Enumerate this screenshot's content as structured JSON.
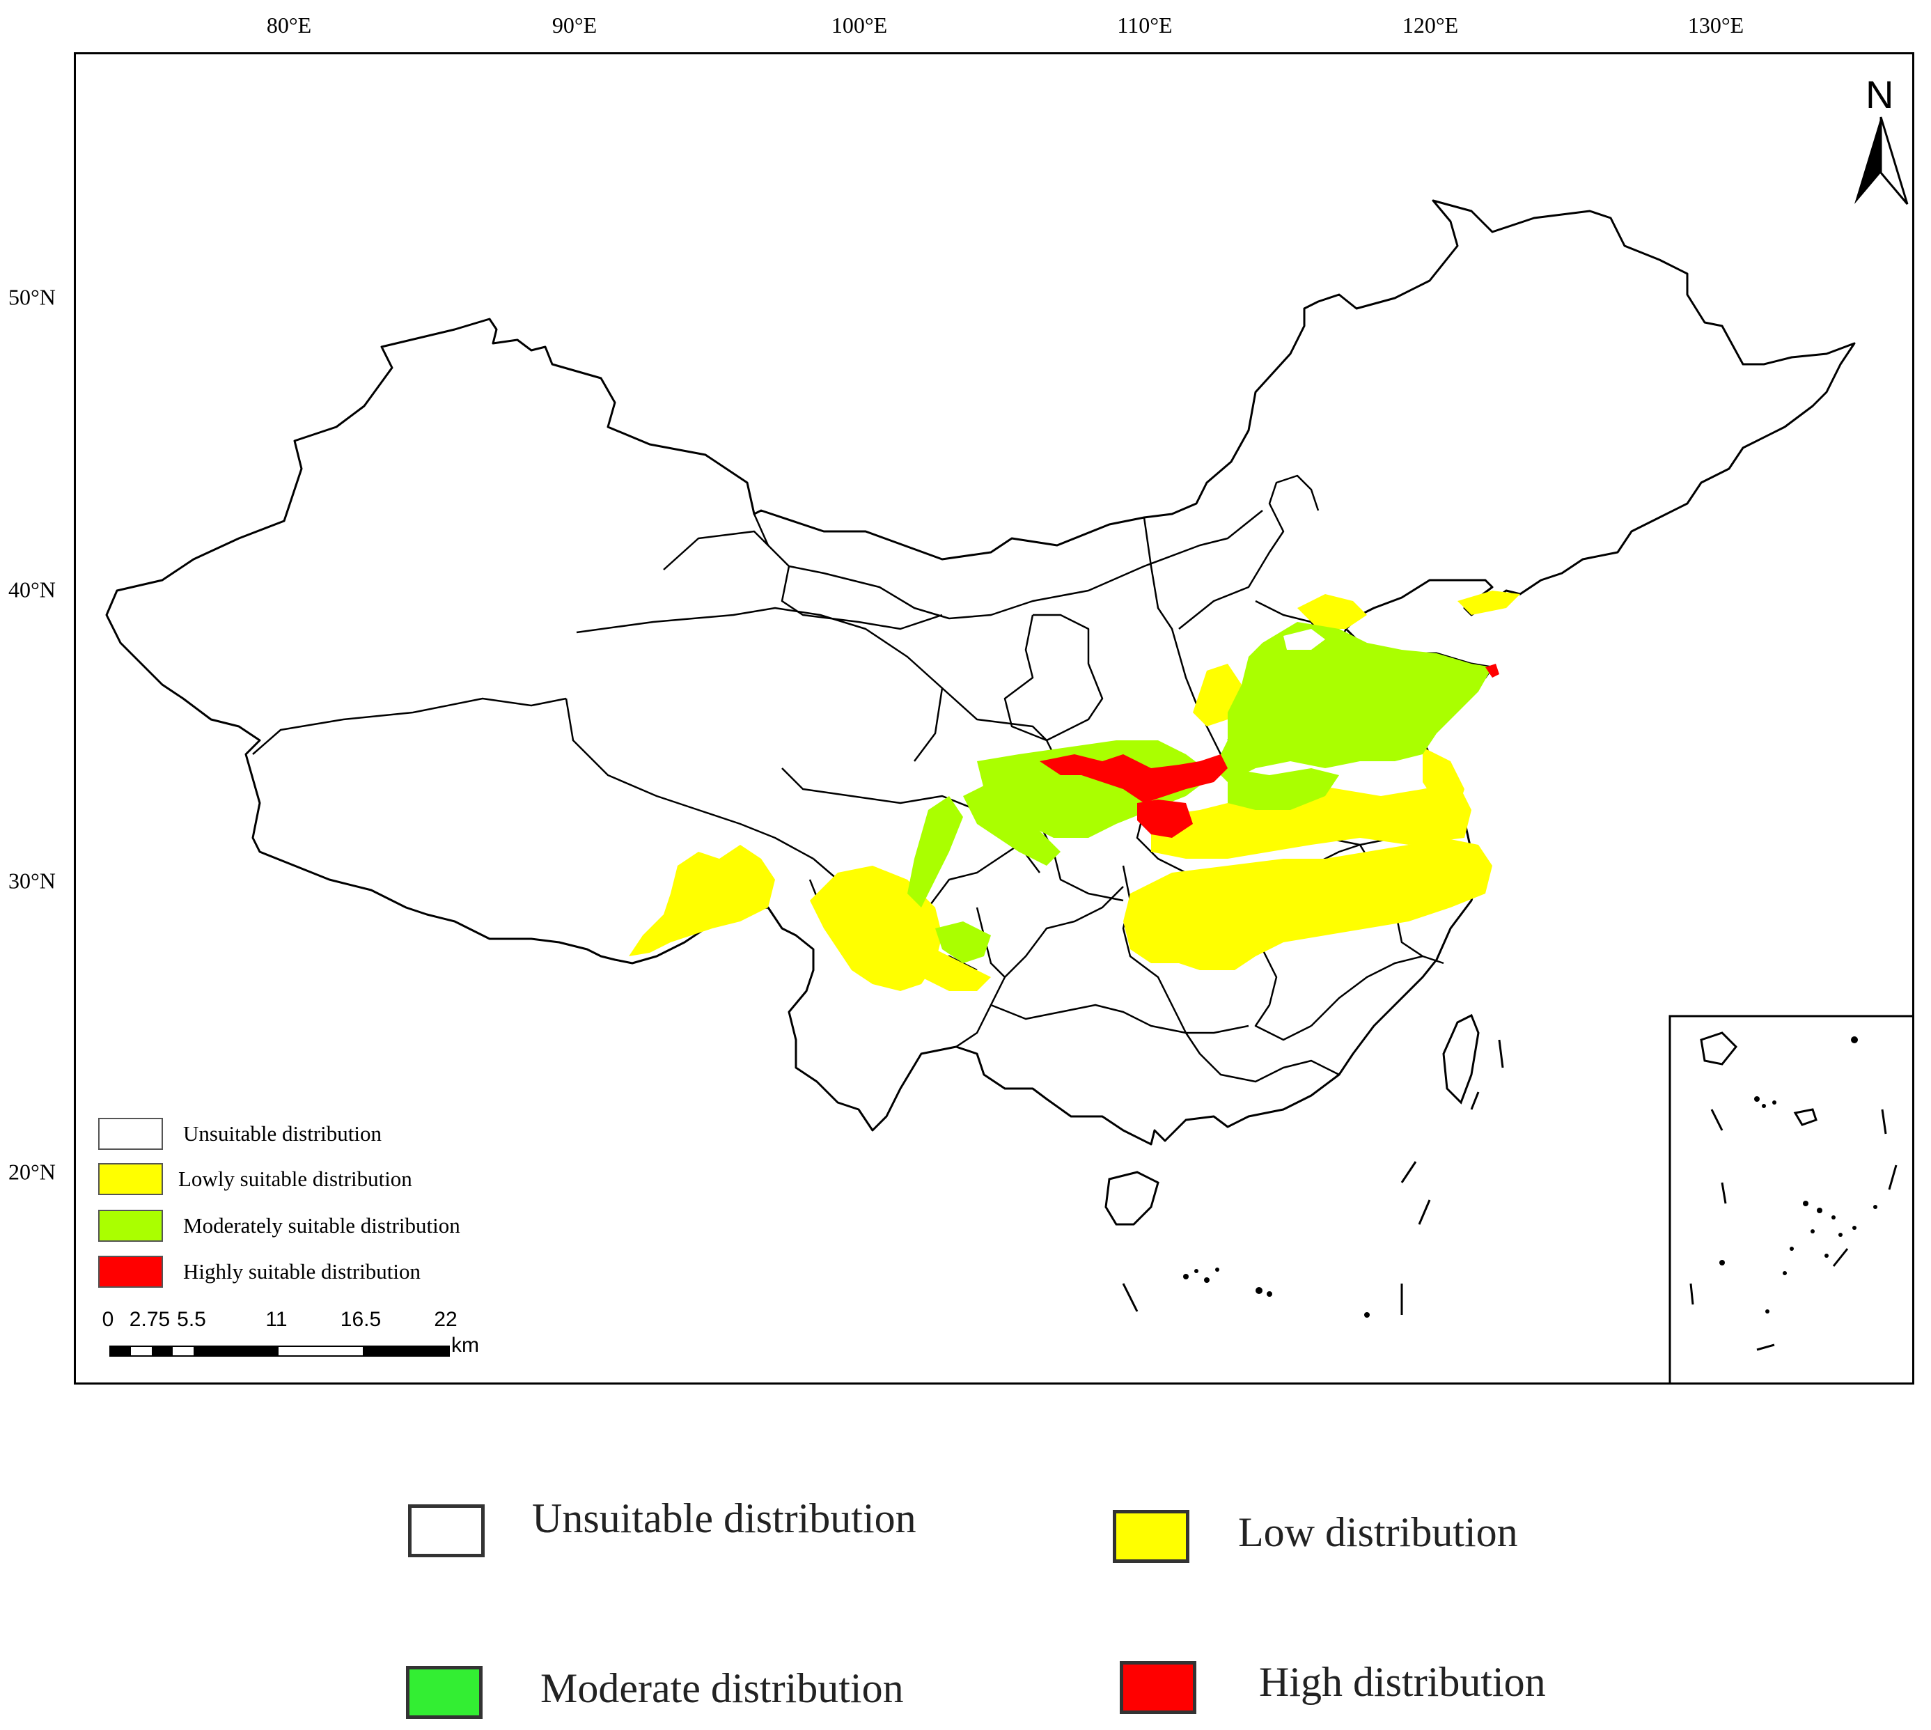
{
  "map": {
    "lon_ticks": [
      "80°E",
      "90°E",
      "100°E",
      "110°E",
      "120°E",
      "130°E"
    ],
    "lat_ticks": [
      "50°N",
      "40°N",
      "30°N",
      "20°N"
    ],
    "north_label": "N",
    "legend": [
      {
        "label": "Unsuitable distribution",
        "color": "#ffffff"
      },
      {
        "label": "Lowly suitable distribution",
        "color": "#ffff00"
      },
      {
        "label": "Moderately suitable distribution",
        "color": "#aaff00"
      },
      {
        "label": "Highly suitable distribution",
        "color": "#ff0000"
      }
    ],
    "scale": {
      "ticks": [
        "0",
        "2.75",
        "5.5",
        "11",
        "16.5",
        "22"
      ],
      "unit": "km"
    }
  },
  "outer_legend": [
    {
      "label": "Unsuitable distribution",
      "color": "#ffffff"
    },
    {
      "label": "Low distribution",
      "color": "#ffff00"
    },
    {
      "label": "Moderate distribution",
      "color": "#33ee33"
    },
    {
      "label": "High distribution",
      "color": "#ff0000"
    }
  ]
}
